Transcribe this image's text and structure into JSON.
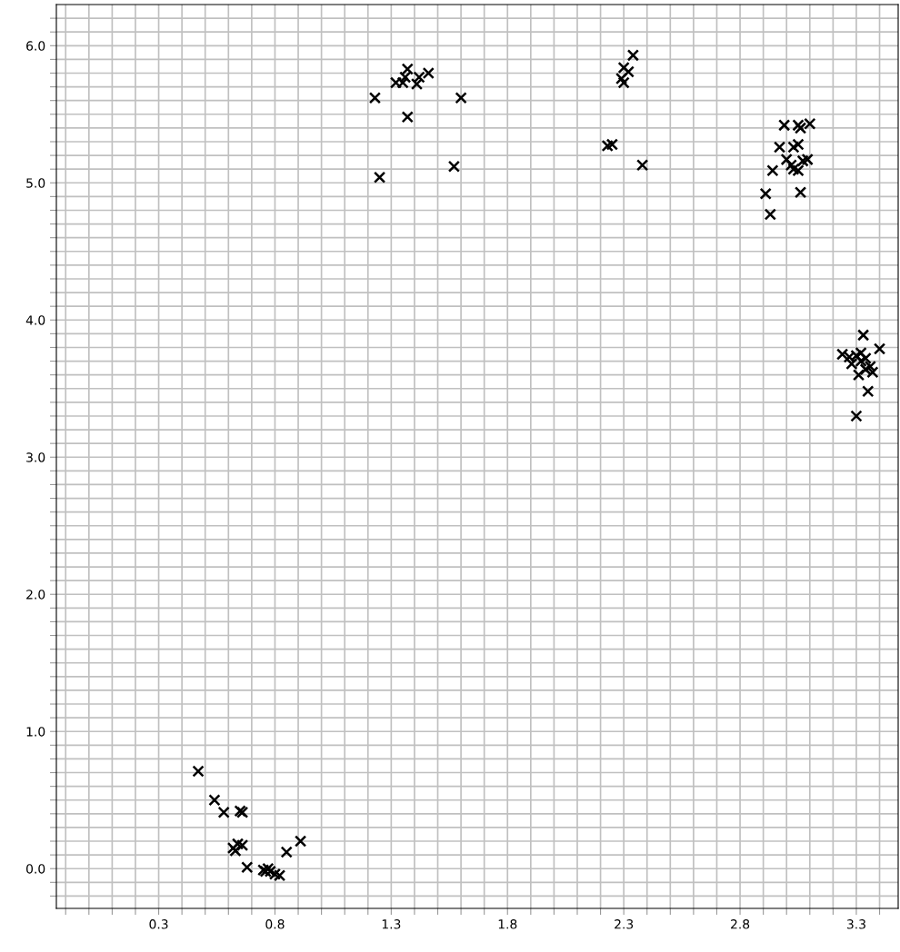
{
  "chart_data": {
    "type": "scatter",
    "marker": "cross",
    "grid": true,
    "legend": false,
    "x": [
      0.47,
      0.54,
      0.58,
      0.65,
      0.66,
      0.62,
      0.64,
      0.66,
      0.63,
      0.68,
      0.75,
      0.77,
      0.78,
      0.8,
      0.82,
      0.76,
      0.85,
      0.91,
      1.23,
      1.25,
      1.32,
      1.35,
      1.37,
      1.36,
      1.41,
      1.42,
      1.46,
      1.37,
      1.6,
      1.57,
      2.34,
      2.3,
      2.32,
      2.29,
      2.3,
      2.23,
      2.25,
      2.38,
      2.91,
      2.93,
      2.94,
      2.99,
      3.05,
      3.06,
      3.1,
      2.97,
      3.03,
      3.05,
      3.02,
      3.03,
      3.05,
      3.07,
      3.09,
      3.06,
      3.0,
      3.33,
      3.24,
      3.3,
      3.32,
      3.34,
      3.4,
      3.3,
      3.35,
      3.31,
      3.34,
      3.36,
      3.32,
      3.28,
      3.27,
      3.37
    ],
    "values": [
      0.71,
      0.5,
      0.41,
      0.42,
      0.41,
      0.15,
      0.18,
      0.17,
      0.13,
      0.01,
      -0.01,
      0.0,
      -0.02,
      -0.04,
      -0.05,
      -0.02,
      0.12,
      0.2,
      5.62,
      5.04,
      5.73,
      5.73,
      5.83,
      5.77,
      5.72,
      5.77,
      5.8,
      5.48,
      5.62,
      5.12,
      5.93,
      5.84,
      5.81,
      5.76,
      5.73,
      5.27,
      5.28,
      5.13,
      4.92,
      4.77,
      5.09,
      5.42,
      5.42,
      5.4,
      5.43,
      5.26,
      5.26,
      5.28,
      5.13,
      5.1,
      5.09,
      5.16,
      5.17,
      4.93,
      5.17,
      3.89,
      3.75,
      3.74,
      3.76,
      3.72,
      3.79,
      3.3,
      3.48,
      3.6,
      3.64,
      3.66,
      3.7,
      3.68,
      3.73,
      3.62
    ],
    "color": "#000000",
    "xlim": [
      -0.14,
      3.48
    ],
    "ylim": [
      -0.29,
      6.3
    ],
    "xticks": [
      {
        "value": -0.1,
        "label": null
      },
      {
        "value": 0.0,
        "label": null
      },
      {
        "value": 0.1,
        "label": null
      },
      {
        "value": 0.2,
        "label": null
      },
      {
        "value": 0.3,
        "label": "0.3"
      },
      {
        "value": 0.4,
        "label": null
      },
      {
        "value": 0.5,
        "label": null
      },
      {
        "value": 0.6,
        "label": null
      },
      {
        "value": 0.7,
        "label": null
      },
      {
        "value": 0.8,
        "label": "0.8"
      },
      {
        "value": 0.9,
        "label": null
      },
      {
        "value": 1.0,
        "label": null
      },
      {
        "value": 1.1,
        "label": null
      },
      {
        "value": 1.2,
        "label": null
      },
      {
        "value": 1.3,
        "label": "1.3"
      },
      {
        "value": 1.4,
        "label": null
      },
      {
        "value": 1.5,
        "label": null
      },
      {
        "value": 1.6,
        "label": null
      },
      {
        "value": 1.7,
        "label": null
      },
      {
        "value": 1.8,
        "label": "1.8"
      },
      {
        "value": 1.9,
        "label": null
      },
      {
        "value": 2.0,
        "label": null
      },
      {
        "value": 2.1,
        "label": null
      },
      {
        "value": 2.2,
        "label": null
      },
      {
        "value": 2.3,
        "label": "2.3"
      },
      {
        "value": 2.4,
        "label": null
      },
      {
        "value": 2.5,
        "label": null
      },
      {
        "value": 2.6,
        "label": null
      },
      {
        "value": 2.7,
        "label": null
      },
      {
        "value": 2.8,
        "label": "2.8"
      },
      {
        "value": 2.9,
        "label": null
      },
      {
        "value": 3.0,
        "label": null
      },
      {
        "value": 3.1,
        "label": null
      },
      {
        "value": 3.2,
        "label": null
      },
      {
        "value": 3.3,
        "label": "3.3"
      },
      {
        "value": 3.4,
        "label": null
      }
    ],
    "yticks": [
      {
        "value": -0.2,
        "label": null
      },
      {
        "value": -0.1,
        "label": null
      },
      {
        "value": 0.0,
        "label": "0.0"
      },
      {
        "value": 0.1,
        "label": null
      },
      {
        "value": 0.2,
        "label": null
      },
      {
        "value": 0.3,
        "label": null
      },
      {
        "value": 0.4,
        "label": null
      },
      {
        "value": 0.5,
        "label": null
      },
      {
        "value": 0.6,
        "label": null
      },
      {
        "value": 0.7,
        "label": null
      },
      {
        "value": 0.8,
        "label": null
      },
      {
        "value": 0.9,
        "label": null
      },
      {
        "value": 1.0,
        "label": "1.0"
      },
      {
        "value": 1.1,
        "label": null
      },
      {
        "value": 1.2,
        "label": null
      },
      {
        "value": 1.3,
        "label": null
      },
      {
        "value": 1.4,
        "label": null
      },
      {
        "value": 1.5,
        "label": null
      },
      {
        "value": 1.6,
        "label": null
      },
      {
        "value": 1.7,
        "label": null
      },
      {
        "value": 1.8,
        "label": null
      },
      {
        "value": 1.9,
        "label": null
      },
      {
        "value": 2.0,
        "label": "2.0"
      },
      {
        "value": 2.1,
        "label": null
      },
      {
        "value": 2.2,
        "label": null
      },
      {
        "value": 2.3,
        "label": null
      },
      {
        "value": 2.4,
        "label": null
      },
      {
        "value": 2.5,
        "label": null
      },
      {
        "value": 2.6,
        "label": null
      },
      {
        "value": 2.7,
        "label": null
      },
      {
        "value": 2.8,
        "label": null
      },
      {
        "value": 2.9,
        "label": null
      },
      {
        "value": 3.0,
        "label": "3.0"
      },
      {
        "value": 3.1,
        "label": null
      },
      {
        "value": 3.2,
        "label": null
      },
      {
        "value": 3.3,
        "label": null
      },
      {
        "value": 3.4,
        "label": null
      },
      {
        "value": 3.5,
        "label": null
      },
      {
        "value": 3.6,
        "label": null
      },
      {
        "value": 3.7,
        "label": null
      },
      {
        "value": 3.8,
        "label": null
      },
      {
        "value": 3.9,
        "label": null
      },
      {
        "value": 4.0,
        "label": "4.0"
      },
      {
        "value": 4.1,
        "label": null
      },
      {
        "value": 4.2,
        "label": null
      },
      {
        "value": 4.3,
        "label": null
      },
      {
        "value": 4.4,
        "label": null
      },
      {
        "value": 4.5,
        "label": null
      },
      {
        "value": 4.6,
        "label": null
      },
      {
        "value": 4.7,
        "label": null
      },
      {
        "value": 4.8,
        "label": null
      },
      {
        "value": 4.9,
        "label": null
      },
      {
        "value": 5.0,
        "label": "5.0"
      },
      {
        "value": 5.1,
        "label": null
      },
      {
        "value": 5.2,
        "label": null
      },
      {
        "value": 5.3,
        "label": null
      },
      {
        "value": 5.4,
        "label": null
      },
      {
        "value": 5.5,
        "label": null
      },
      {
        "value": 5.6,
        "label": null
      },
      {
        "value": 5.7,
        "label": null
      },
      {
        "value": 5.8,
        "label": null
      },
      {
        "value": 5.9,
        "label": null
      },
      {
        "value": 6.0,
        "label": "6.0"
      },
      {
        "value": 6.1,
        "label": null
      },
      {
        "value": 6.2,
        "label": null
      }
    ]
  }
}
